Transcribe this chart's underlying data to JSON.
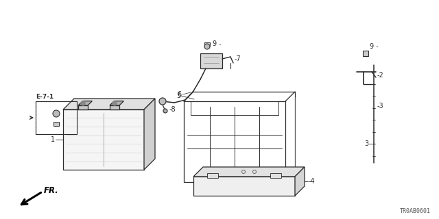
{
  "bg_color": "#ffffff",
  "lc": "#2a2a2a",
  "footer": "TR0AB0601",
  "figsize": [
    6.4,
    3.2
  ],
  "dpi": 100
}
